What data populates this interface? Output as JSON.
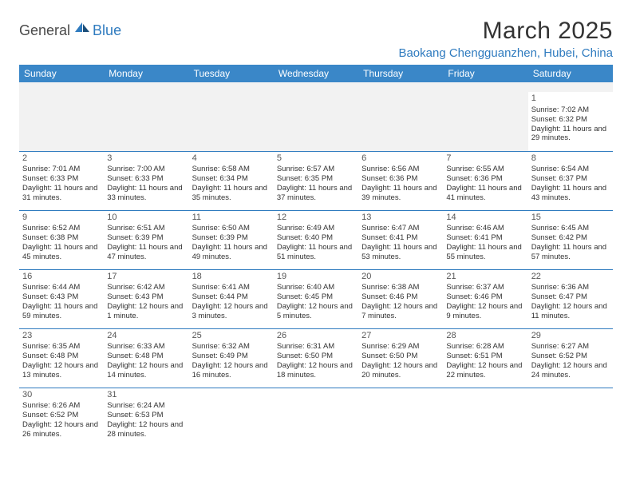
{
  "logo": {
    "general": "General",
    "blue": "Blue"
  },
  "title": "March 2025",
  "location": "Baokang Chengguanzhen, Hubei, China",
  "colors": {
    "header_bg": "#3a87c8",
    "header_text": "#ffffff",
    "accent": "#2f7bbf",
    "cell_border": "#2f7bbf",
    "blank_bg": "#f2f2f2",
    "text": "#333333",
    "logo_gray": "#4a4a4a"
  },
  "days_of_week": [
    "Sunday",
    "Monday",
    "Tuesday",
    "Wednesday",
    "Thursday",
    "Friday",
    "Saturday"
  ],
  "weeks": [
    [
      null,
      null,
      null,
      null,
      null,
      null,
      {
        "n": 1,
        "sr": "7:02 AM",
        "ss": "6:32 PM",
        "dl": "11 hours and 29 minutes."
      }
    ],
    [
      {
        "n": 2,
        "sr": "7:01 AM",
        "ss": "6:33 PM",
        "dl": "11 hours and 31 minutes."
      },
      {
        "n": 3,
        "sr": "7:00 AM",
        "ss": "6:33 PM",
        "dl": "11 hours and 33 minutes."
      },
      {
        "n": 4,
        "sr": "6:58 AM",
        "ss": "6:34 PM",
        "dl": "11 hours and 35 minutes."
      },
      {
        "n": 5,
        "sr": "6:57 AM",
        "ss": "6:35 PM",
        "dl": "11 hours and 37 minutes."
      },
      {
        "n": 6,
        "sr": "6:56 AM",
        "ss": "6:36 PM",
        "dl": "11 hours and 39 minutes."
      },
      {
        "n": 7,
        "sr": "6:55 AM",
        "ss": "6:36 PM",
        "dl": "11 hours and 41 minutes."
      },
      {
        "n": 8,
        "sr": "6:54 AM",
        "ss": "6:37 PM",
        "dl": "11 hours and 43 minutes."
      }
    ],
    [
      {
        "n": 9,
        "sr": "6:52 AM",
        "ss": "6:38 PM",
        "dl": "11 hours and 45 minutes."
      },
      {
        "n": 10,
        "sr": "6:51 AM",
        "ss": "6:39 PM",
        "dl": "11 hours and 47 minutes."
      },
      {
        "n": 11,
        "sr": "6:50 AM",
        "ss": "6:39 PM",
        "dl": "11 hours and 49 minutes."
      },
      {
        "n": 12,
        "sr": "6:49 AM",
        "ss": "6:40 PM",
        "dl": "11 hours and 51 minutes."
      },
      {
        "n": 13,
        "sr": "6:47 AM",
        "ss": "6:41 PM",
        "dl": "11 hours and 53 minutes."
      },
      {
        "n": 14,
        "sr": "6:46 AM",
        "ss": "6:41 PM",
        "dl": "11 hours and 55 minutes."
      },
      {
        "n": 15,
        "sr": "6:45 AM",
        "ss": "6:42 PM",
        "dl": "11 hours and 57 minutes."
      }
    ],
    [
      {
        "n": 16,
        "sr": "6:44 AM",
        "ss": "6:43 PM",
        "dl": "11 hours and 59 minutes."
      },
      {
        "n": 17,
        "sr": "6:42 AM",
        "ss": "6:43 PM",
        "dl": "12 hours and 1 minute."
      },
      {
        "n": 18,
        "sr": "6:41 AM",
        "ss": "6:44 PM",
        "dl": "12 hours and 3 minutes."
      },
      {
        "n": 19,
        "sr": "6:40 AM",
        "ss": "6:45 PM",
        "dl": "12 hours and 5 minutes."
      },
      {
        "n": 20,
        "sr": "6:38 AM",
        "ss": "6:46 PM",
        "dl": "12 hours and 7 minutes."
      },
      {
        "n": 21,
        "sr": "6:37 AM",
        "ss": "6:46 PM",
        "dl": "12 hours and 9 minutes."
      },
      {
        "n": 22,
        "sr": "6:36 AM",
        "ss": "6:47 PM",
        "dl": "12 hours and 11 minutes."
      }
    ],
    [
      {
        "n": 23,
        "sr": "6:35 AM",
        "ss": "6:48 PM",
        "dl": "12 hours and 13 minutes."
      },
      {
        "n": 24,
        "sr": "6:33 AM",
        "ss": "6:48 PM",
        "dl": "12 hours and 14 minutes."
      },
      {
        "n": 25,
        "sr": "6:32 AM",
        "ss": "6:49 PM",
        "dl": "12 hours and 16 minutes."
      },
      {
        "n": 26,
        "sr": "6:31 AM",
        "ss": "6:50 PM",
        "dl": "12 hours and 18 minutes."
      },
      {
        "n": 27,
        "sr": "6:29 AM",
        "ss": "6:50 PM",
        "dl": "12 hours and 20 minutes."
      },
      {
        "n": 28,
        "sr": "6:28 AM",
        "ss": "6:51 PM",
        "dl": "12 hours and 22 minutes."
      },
      {
        "n": 29,
        "sr": "6:27 AM",
        "ss": "6:52 PM",
        "dl": "12 hours and 24 minutes."
      }
    ],
    [
      {
        "n": 30,
        "sr": "6:26 AM",
        "ss": "6:52 PM",
        "dl": "12 hours and 26 minutes."
      },
      {
        "n": 31,
        "sr": "6:24 AM",
        "ss": "6:53 PM",
        "dl": "12 hours and 28 minutes."
      },
      null,
      null,
      null,
      null,
      null
    ]
  ],
  "labels": {
    "sunrise": "Sunrise: ",
    "sunset": "Sunset: ",
    "daylight": "Daylight: "
  }
}
